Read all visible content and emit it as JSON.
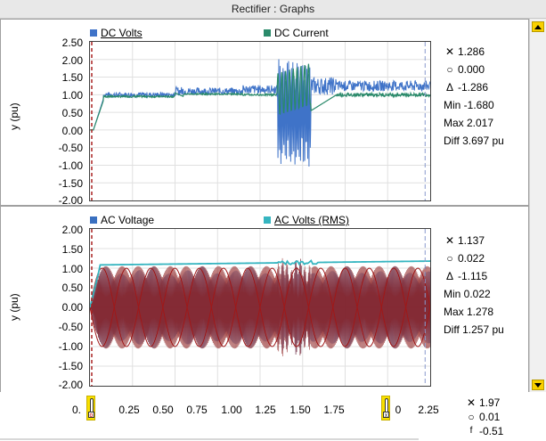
{
  "window": {
    "title": "Rectifier : Graphs"
  },
  "colors": {
    "dc_volts": "#3f73c8",
    "dc_current": "#2a8a6a",
    "ac_voltage": "#8b1a1a",
    "ac_voltage_blue": "#3a70c0",
    "ac_rms": "#36b5c0",
    "marker": "#f8e000",
    "cursor": "#8899cc"
  },
  "panel1": {
    "ylabel": "y (pu)",
    "legend": [
      {
        "label": "DC Volts",
        "color": "#3f73c8",
        "underline": true
      },
      {
        "label": "DC Current",
        "color": "#2a8a6a",
        "underline": false
      }
    ],
    "yticks": [
      "2.50",
      "2.00",
      "1.50",
      "1.00",
      "0.50",
      "0.00",
      "-0.50",
      "-1.00",
      "-1.50",
      "-2.00"
    ],
    "readout": {
      "cross": "1.286",
      "circle": "0.000",
      "delta": "-1.286",
      "min": "Min -1.680",
      "max": "Max 2.017",
      "diff": "Diff 3.697 pu"
    }
  },
  "panel2": {
    "ylabel": "y (pu)",
    "legend": [
      {
        "label": "AC Voltage",
        "color": "#3a70c0",
        "underline": false
      },
      {
        "label": "AC Volts (RMS)",
        "color": "#36b5c0",
        "underline": true
      }
    ],
    "yticks": [
      "2.00",
      "1.50",
      "1.00",
      "0.50",
      "0.00",
      "-0.50",
      "-1.00",
      "-1.50",
      "-2.00"
    ],
    "readout": {
      "cross": "1.137",
      "circle": "0.022",
      "delta": "-1.115",
      "min": "Min 0.022",
      "max": "Max 1.278",
      "diff": "Diff 1.257 pu"
    }
  },
  "xaxis": {
    "ticks": [
      "0.",
      "0.25",
      "0.50",
      "0.75",
      "1.00",
      "1.25",
      "1.50",
      "1.75",
      "0",
      "2.25"
    ],
    "readout": {
      "cross": "1.97",
      "circle": "0.01",
      "f": "-0.51"
    }
  },
  "chart_data": [
    {
      "type": "line",
      "ylabel": "y (pu)",
      "xlim": [
        0,
        2.0
      ],
      "ylim": [
        -2.0,
        2.5
      ],
      "grid": true,
      "legend": "top",
      "series": [
        {
          "name": "DC Volts",
          "min": -1.68,
          "max": 2.017
        },
        {
          "name": "DC Current"
        }
      ]
    },
    {
      "type": "line",
      "ylabel": "y (pu)",
      "xlim": [
        0,
        2.0
      ],
      "ylim": [
        -2.0,
        2.0
      ],
      "grid": true,
      "legend": "top",
      "series": [
        {
          "name": "AC Voltage"
        },
        {
          "name": "AC Volts (RMS)",
          "min": 0.022,
          "max": 1.278
        }
      ]
    }
  ]
}
